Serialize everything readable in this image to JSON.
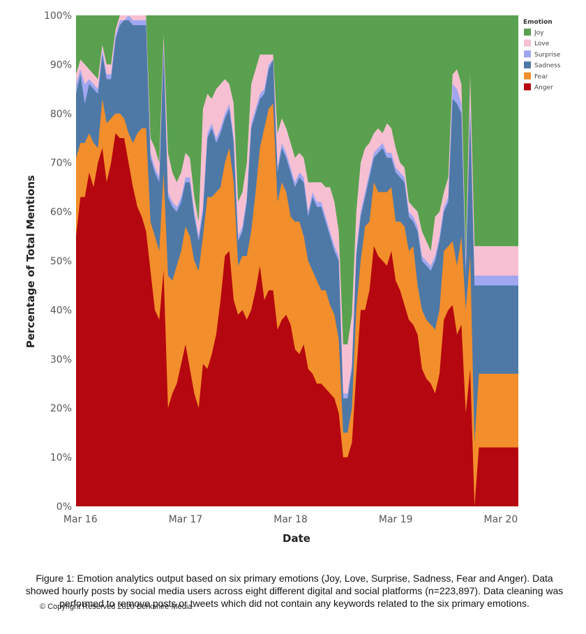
{
  "chart_data": {
    "type": "area",
    "xlabel": "Date",
    "ylabel": "Percentage of Total Mentions",
    "ylim": [
      0,
      100
    ],
    "y_ticks": [
      "0%",
      "10%",
      "20%",
      "30%",
      "40%",
      "50%",
      "60%",
      "70%",
      "80%",
      "90%",
      "100%"
    ],
    "x_ticks": [
      {
        "label": "Mar 16",
        "hour": 0
      },
      {
        "label": "Mar 17",
        "hour": 24
      },
      {
        "label": "Mar 18",
        "hour": 48
      },
      {
        "label": "Mar 19",
        "hour": 72
      },
      {
        "label": "Mar 20",
        "hour": 96
      }
    ],
    "x_hours": [
      -1,
      0,
      1,
      2,
      3,
      4,
      5,
      6,
      7,
      8,
      9,
      10,
      11,
      12,
      13,
      14,
      15,
      16,
      17,
      18,
      19,
      20,
      21,
      22,
      23,
      24,
      25,
      26,
      27,
      28,
      29,
      30,
      31,
      32,
      33,
      34,
      35,
      36,
      37,
      38,
      39,
      40,
      41,
      42,
      43,
      44,
      45,
      46,
      47,
      48,
      49,
      50,
      51,
      52,
      53,
      54,
      55,
      56,
      57,
      58,
      59,
      60,
      61,
      62,
      63,
      64,
      65,
      66,
      67,
      68,
      69,
      70,
      71,
      72,
      73,
      74,
      75,
      76,
      77,
      78,
      79,
      80,
      81,
      82,
      83,
      84,
      85,
      86,
      87,
      88,
      89,
      90,
      91,
      92,
      93,
      94,
      95,
      96,
      97,
      98,
      99,
      100
    ],
    "stack_order": [
      "Anger",
      "Fear",
      "Sadness",
      "Surprise",
      "Love",
      "Joy"
    ],
    "series": [
      {
        "name": "Anger",
        "color": "#b5070f",
        "values": [
          55,
          63,
          63,
          68,
          65,
          70,
          73,
          66,
          70,
          76,
          75,
          75,
          70,
          65,
          61,
          59,
          56,
          48,
          40,
          38,
          48,
          20,
          23,
          25,
          29,
          33,
          28,
          23,
          20,
          29,
          28,
          31,
          35,
          42,
          51,
          52,
          42,
          39,
          40,
          38,
          40,
          44,
          49,
          42,
          44,
          44,
          36,
          38,
          39,
          37,
          32,
          31,
          33,
          28,
          27,
          25,
          25,
          24,
          23,
          22,
          19,
          10,
          10,
          13,
          27,
          40,
          40,
          44,
          53,
          51,
          50,
          49,
          52,
          46,
          44,
          41,
          38,
          37,
          35,
          28,
          26,
          25,
          23,
          27,
          38,
          40,
          41,
          35,
          37,
          19,
          28,
          0,
          12,
          12,
          12,
          12,
          12,
          12,
          12,
          12,
          12,
          12
        ]
      },
      {
        "name": "Fear",
        "color": "#f28e2b",
        "values": [
          71,
          74,
          74,
          76,
          74,
          73,
          83,
          78,
          79,
          80,
          80,
          79,
          76,
          74,
          76,
          77,
          77,
          58,
          55,
          52,
          68,
          47,
          46,
          49,
          52,
          57,
          55,
          50,
          48,
          55,
          63,
          63,
          64,
          65,
          70,
          73,
          66,
          49,
          51,
          51,
          56,
          64,
          73,
          77,
          81,
          82,
          62,
          66,
          64,
          59,
          58,
          58,
          55,
          50,
          48,
          46,
          44,
          44,
          41,
          39,
          34,
          15,
          15,
          20,
          40,
          50,
          57,
          58,
          66,
          64,
          64,
          64,
          65,
          58,
          58,
          57,
          52,
          53,
          45,
          40,
          38,
          37,
          36,
          40,
          52,
          53,
          54,
          49,
          55,
          40,
          51,
          13,
          27,
          27,
          27,
          27,
          27,
          27,
          27,
          27,
          27,
          27
        ]
      },
      {
        "name": "Sadness",
        "color": "#4e79a7",
        "values": [
          84,
          88,
          82,
          86,
          85,
          84,
          92,
          87,
          87,
          95,
          98,
          99,
          99,
          98,
          98,
          98,
          98,
          71,
          68,
          66,
          93,
          63,
          61,
          60,
          62,
          66,
          66,
          59,
          54,
          60,
          75,
          77,
          74,
          76,
          79,
          81,
          74,
          54,
          56,
          62,
          77,
          80,
          83,
          84,
          89,
          91,
          68,
          73,
          71,
          68,
          65,
          67,
          66,
          59,
          63,
          61,
          61,
          58,
          55,
          52,
          50,
          22,
          22,
          28,
          51,
          59,
          63,
          67,
          71,
          72,
          73,
          71,
          71,
          68,
          67,
          66,
          59,
          58,
          56,
          50,
          49,
          48,
          50,
          54,
          60,
          62,
          83,
          82,
          80,
          47,
          80,
          45,
          45,
          45,
          45,
          45,
          45,
          45,
          45,
          45,
          45,
          45
        ]
      },
      {
        "name": "Surprise",
        "color": "#a0a7f0",
        "values": [
          86,
          89,
          86,
          87,
          86,
          85,
          93,
          88,
          88,
          96,
          99,
          99,
          100,
          99,
          99,
          99,
          99,
          72,
          69,
          67,
          94,
          64,
          62,
          61,
          63,
          67,
          67,
          60,
          55,
          61,
          76,
          78,
          75,
          77,
          80,
          82,
          75,
          55,
          57,
          63,
          78,
          81,
          84,
          85,
          90,
          91,
          69,
          74,
          72,
          69,
          66,
          68,
          67,
          60,
          64,
          62,
          62,
          59,
          56,
          53,
          51,
          23,
          23,
          29,
          52,
          60,
          64,
          68,
          72,
          73,
          74,
          72,
          72,
          69,
          68,
          67,
          60,
          59,
          57,
          51,
          50,
          49,
          51,
          55,
          61,
          63,
          86,
          85,
          82,
          49,
          82,
          47,
          47,
          47,
          47,
          47,
          47,
          47,
          47,
          47,
          47,
          47
        ]
      },
      {
        "name": "Love",
        "color": "#f7c0d2",
        "values": [
          88,
          91,
          90,
          89,
          88,
          87,
          94,
          90,
          90,
          97,
          100,
          100,
          100,
          100,
          100,
          100,
          100,
          75,
          73,
          70,
          96,
          72,
          68,
          66,
          68,
          72,
          71,
          63,
          58,
          81,
          84,
          83,
          85,
          86,
          87,
          86,
          82,
          62,
          64,
          70,
          86,
          89,
          92,
          92,
          92,
          92,
          76,
          79,
          77,
          74,
          71,
          72,
          71,
          66,
          66,
          66,
          66,
          65,
          65,
          62,
          56,
          33,
          33,
          39,
          60,
          70,
          73,
          74,
          76,
          77,
          76,
          78,
          77,
          73,
          70,
          69,
          62,
          61,
          60,
          56,
          54,
          52,
          59,
          60,
          64,
          67,
          88,
          89,
          86,
          51,
          88,
          53,
          53,
          53,
          53,
          53,
          53,
          53,
          53,
          53,
          53,
          53
        ]
      },
      {
        "name": "Joy",
        "color": "#59a14f",
        "values": [
          100,
          100,
          100,
          100,
          100,
          100,
          100,
          100,
          100,
          100,
          100,
          100,
          100,
          100,
          100,
          100,
          100,
          100,
          100,
          100,
          100,
          100,
          100,
          100,
          100,
          100,
          100,
          100,
          100,
          100,
          100,
          100,
          100,
          100,
          100,
          100,
          100,
          100,
          100,
          100,
          100,
          100,
          100,
          100,
          100,
          100,
          100,
          100,
          100,
          100,
          100,
          100,
          100,
          100,
          100,
          100,
          100,
          100,
          100,
          100,
          100,
          100,
          100,
          100,
          100,
          100,
          100,
          100,
          100,
          100,
          100,
          100,
          100,
          100,
          100,
          100,
          100,
          100,
          100,
          100,
          100,
          100,
          100,
          100,
          100,
          100,
          100,
          100,
          100,
          100,
          100,
          100,
          100,
          100,
          100,
          100,
          100,
          100,
          100,
          100,
          100,
          100
        ]
      }
    ],
    "legend": {
      "title": "Emotion",
      "placement": "top-right",
      "entries": [
        {
          "name": "Joy",
          "color": "#59a14f"
        },
        {
          "name": "Love",
          "color": "#f7c0d2"
        },
        {
          "name": "Surprise",
          "color": "#a0a7f0"
        },
        {
          "name": "Sadness",
          "color": "#4e79a7"
        },
        {
          "name": "Fear",
          "color": "#f28e2b"
        },
        {
          "name": "Anger",
          "color": "#b5070f"
        }
      ]
    }
  },
  "caption": "Figure 1: Emotion analytics output based on six primary emotions (Joy, Love, Surprise, Sadness, Fear and Anger). Data showed hourly posts by social media users across eight different digital and social platforms (n=223,897). Data cleaning was performed to remove posts or tweets which did not contain any keywords related to the six primary emotions.",
  "copyright": "© Copyright Reserved 2020 Berkshire Media"
}
